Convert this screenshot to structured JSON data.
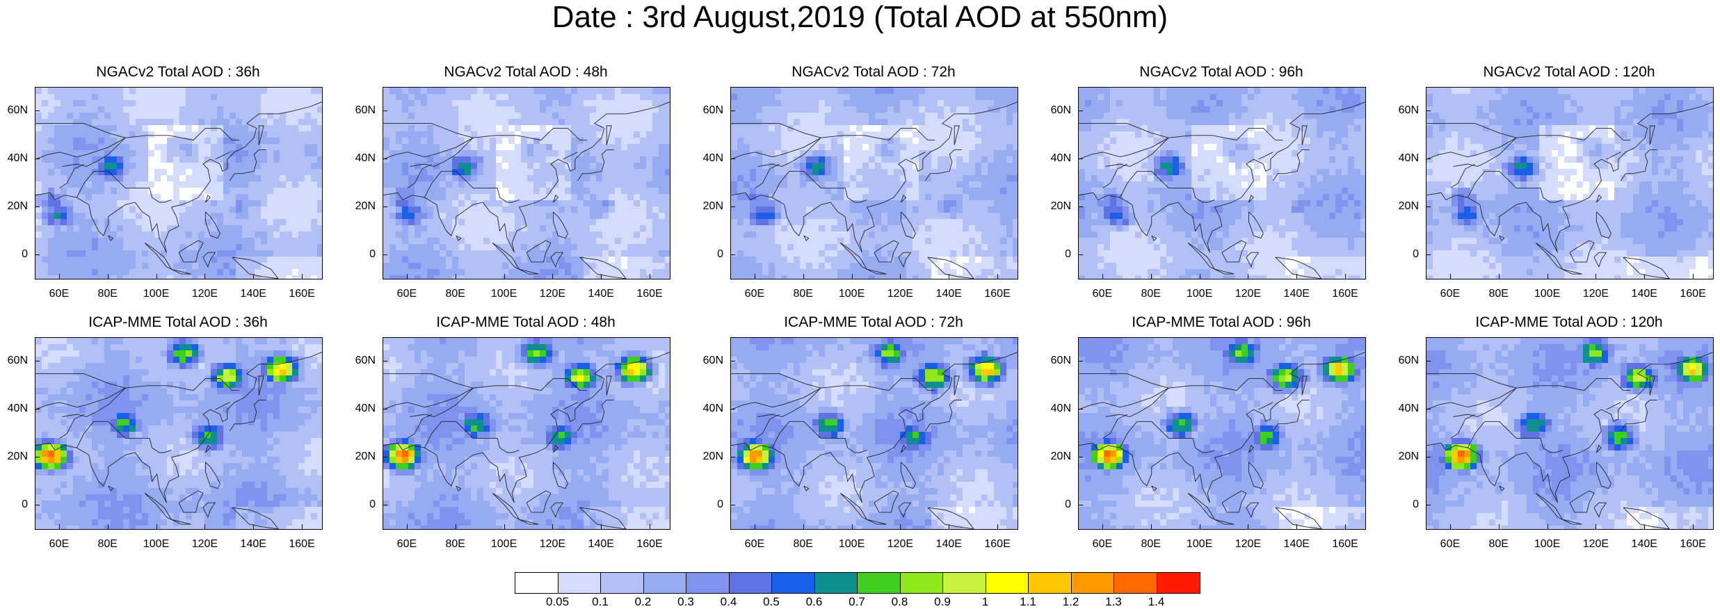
{
  "title": "Date : 3rd August,2019 (Total AOD at 550nm)",
  "panels": [
    {
      "title": "NGACv2 Total AOD : 36h",
      "model": "NGACv2",
      "lead": "36h"
    },
    {
      "title": "NGACv2 Total AOD : 48h",
      "model": "NGACv2",
      "lead": "48h"
    },
    {
      "title": "NGACv2 Total AOD : 72h",
      "model": "NGACv2",
      "lead": "72h"
    },
    {
      "title": "NGACv2 Total AOD : 96h",
      "model": "NGACv2",
      "lead": "96h"
    },
    {
      "title": "NGACv2 Total AOD : 120h",
      "model": "NGACv2",
      "lead": "120h"
    },
    {
      "title": "ICAP-MME Total AOD : 36h",
      "model": "ICAP-MME",
      "lead": "36h"
    },
    {
      "title": "ICAP-MME Total AOD : 48h",
      "model": "ICAP-MME",
      "lead": "48h"
    },
    {
      "title": "ICAP-MME Total AOD : 72h",
      "model": "ICAP-MME",
      "lead": "72h"
    },
    {
      "title": "ICAP-MME Total AOD : 96h",
      "model": "ICAP-MME",
      "lead": "96h"
    },
    {
      "title": "ICAP-MME Total AOD : 120h",
      "model": "ICAP-MME",
      "lead": "120h"
    }
  ],
  "axes": {
    "lat_ticks": [
      "60N",
      "40N",
      "20N",
      "0"
    ],
    "lon_ticks": [
      "60E",
      "80E",
      "100E",
      "120E",
      "140E",
      "160E"
    ],
    "lat_values": [
      60,
      40,
      20,
      0
    ],
    "lon_values": [
      60,
      80,
      100,
      120,
      140,
      160
    ],
    "lon_range": [
      50,
      168
    ],
    "lat_range": [
      -10,
      70
    ]
  },
  "colorbar": {
    "labels": [
      "0.05",
      "0.1",
      "0.2",
      "0.3",
      "0.4",
      "0.5",
      "0.6",
      "0.7",
      "0.8",
      "0.9",
      "1",
      "1.1",
      "1.2",
      "1.3",
      "1.4"
    ],
    "colors": [
      "#ffffff",
      "#d3dcfa",
      "#b2c0f5",
      "#97abf2",
      "#7e92ee",
      "#5f73e4",
      "#1a5fe8",
      "#0f8f8f",
      "#3fcf1f",
      "#8fe81a",
      "#c6f23d",
      "#ffff00",
      "#ffc800",
      "#ff9a00",
      "#ff6a00",
      "#ff1a00"
    ]
  },
  "hotspots": {
    "ngac": [
      {
        "lon": 58,
        "lat": 18,
        "level": 6
      },
      {
        "lon": 80,
        "lat": 38,
        "level": 7
      },
      {
        "lon": 56,
        "lat": 24,
        "level": 5
      },
      {
        "lon": 135,
        "lat": 22,
        "level": 4
      },
      {
        "lon": 110,
        "lat": 45,
        "level": 3
      }
    ],
    "icap": [
      {
        "lon": 55,
        "lat": 22,
        "level": 14
      },
      {
        "lon": 150,
        "lat": 58,
        "level": 12
      },
      {
        "lon": 128,
        "lat": 55,
        "level": 10
      },
      {
        "lon": 110,
        "lat": 65,
        "level": 9
      },
      {
        "lon": 85,
        "lat": 35,
        "level": 8
      },
      {
        "lon": 120,
        "lat": 30,
        "level": 8
      }
    ]
  }
}
